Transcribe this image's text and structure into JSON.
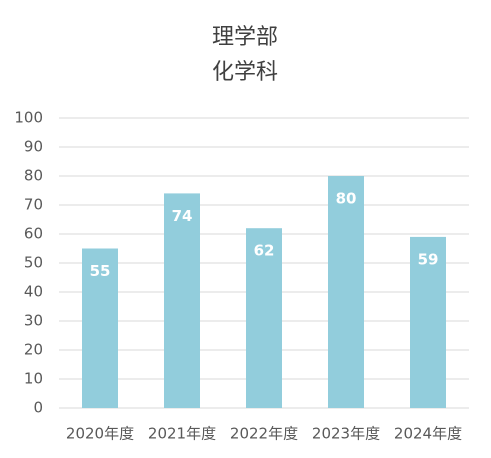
{
  "chart_data": {
    "type": "bar",
    "title": "理学部",
    "subtitle": "化学科",
    "categories": [
      "2020年度",
      "2021年度",
      "2022年度",
      "2023年度",
      "2024年度"
    ],
    "values": [
      55,
      74,
      62,
      80,
      59
    ],
    "color": "#92cddc",
    "ylim": [
      0,
      100
    ],
    "yticks": [
      0,
      10,
      20,
      30,
      40,
      50,
      60,
      70,
      80,
      90,
      100
    ],
    "grid": true,
    "data_labels": true
  }
}
